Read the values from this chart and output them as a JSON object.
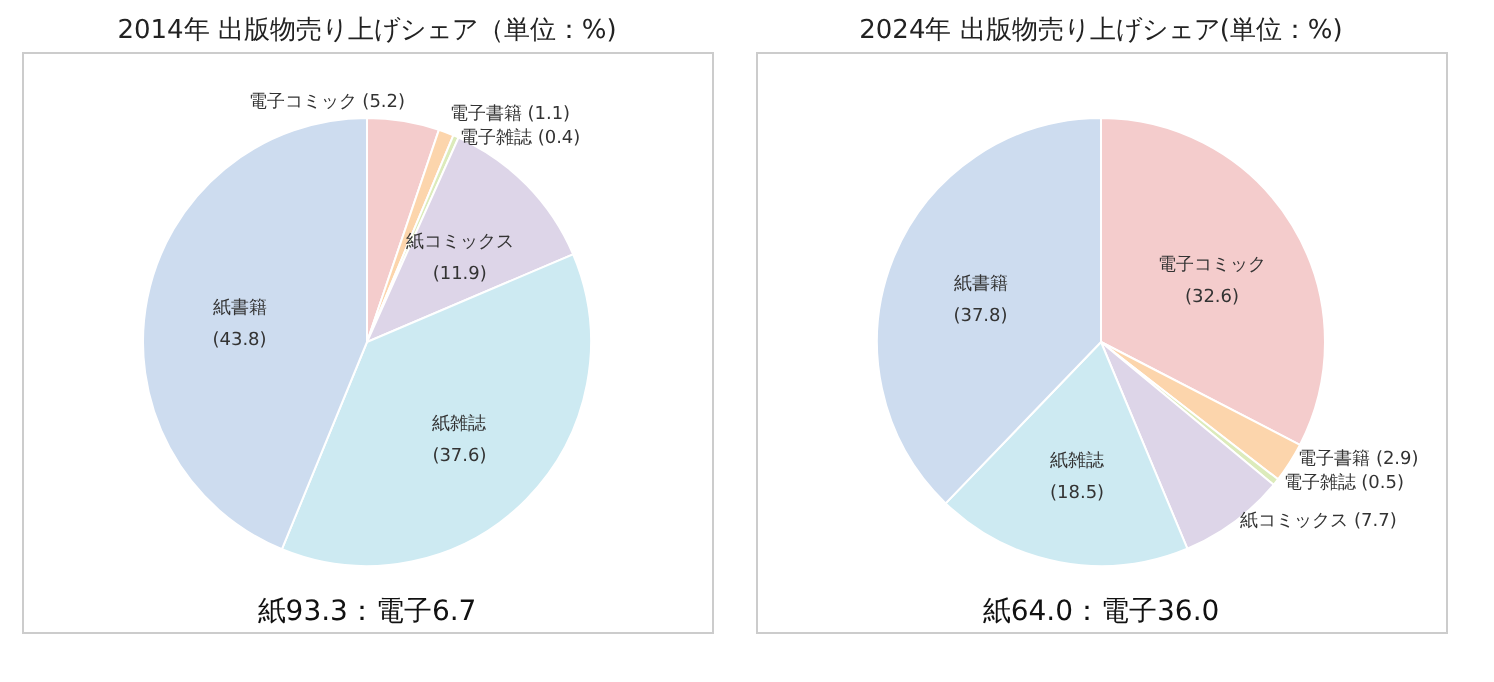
{
  "chart_data": [
    {
      "type": "pie",
      "title": "2014年 出版物売り上げシェア（単位：%)",
      "categories": [
        "電子コミック",
        "電子書籍",
        "電子雑誌",
        "紙コミックス",
        "紙雑誌",
        "紙書籍"
      ],
      "values": [
        5.2,
        1.1,
        0.4,
        11.9,
        37.6,
        43.8
      ],
      "value_labels": [
        "(5.2)",
        "(1.1)",
        "(0.4)",
        "(11.9)",
        "(37.6)",
        "(43.8)"
      ],
      "colors": [
        "#f4cccc",
        "#fcd5ac",
        "#dcebbb",
        "#ddd5e8",
        "#cdeaf2",
        "#cddcef"
      ],
      "legend": false,
      "annotations": [
        "紙93.3：電子6.7"
      ]
    },
    {
      "type": "pie",
      "title": "2024年 出版物売り上げシェア(単位：%)",
      "categories": [
        "電子コミック",
        "電子書籍",
        "電子雑誌",
        "紙コミックス",
        "紙雑誌",
        "紙書籍"
      ],
      "values": [
        32.6,
        2.9,
        0.5,
        7.7,
        18.5,
        37.8
      ],
      "value_labels": [
        "(32.6)",
        "(2.9)",
        "(0.5)",
        "(7.7)",
        "(18.5)",
        "(37.8)"
      ],
      "colors": [
        "#f4cccc",
        "#fcd5ac",
        "#dcebbb",
        "#ddd5e8",
        "#cdeaf2",
        "#cddcef"
      ],
      "legend": false,
      "annotations": [
        "紙64.0：電子36.0"
      ]
    }
  ]
}
